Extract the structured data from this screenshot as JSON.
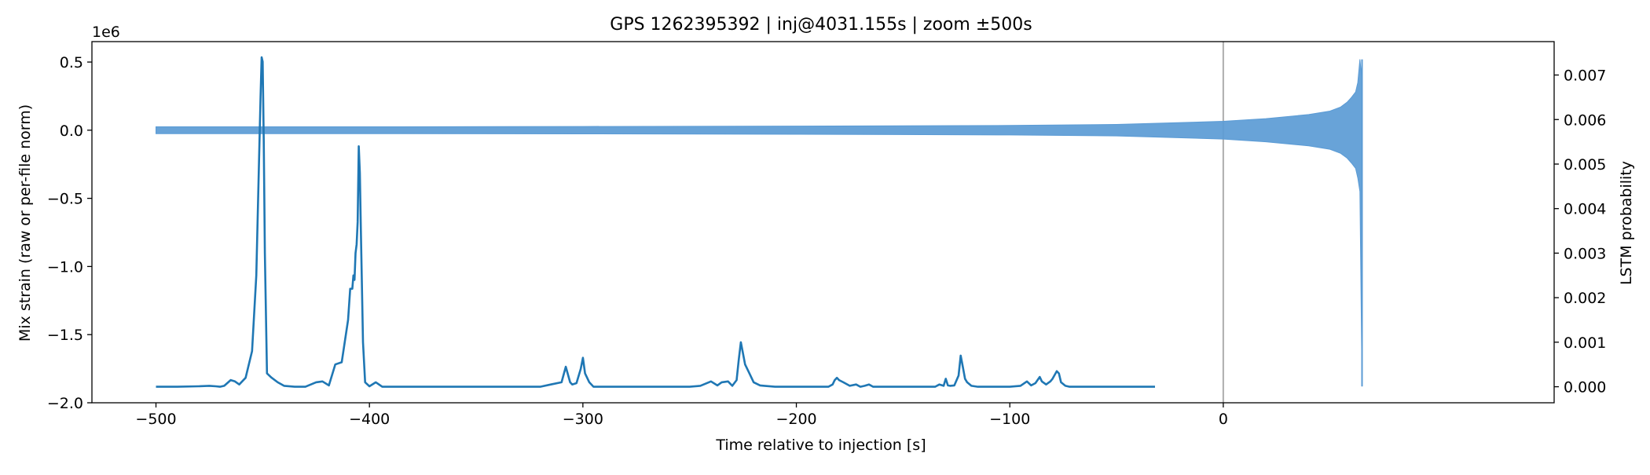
{
  "chart_data": {
    "type": "line",
    "title": "GPS 1262395392 | inj@4031.155s | zoom ±500s",
    "xlabel": "Time relative to injection [s]",
    "ylabel_left": "Mix strain (raw or per-file norm)",
    "ylabel_right": "LSTM probability",
    "offset_text_left": "1e6",
    "xlim": [
      -530,
      155
    ],
    "ylim_left": [
      -2000000,
      650000
    ],
    "ylim_right": [
      -0.00036,
      0.00775
    ],
    "xticks": [
      -500,
      -400,
      -300,
      -200,
      -100,
      0
    ],
    "xtick_labels": [
      "−500",
      "−400",
      "−300",
      "−200",
      "−100",
      "0"
    ],
    "yticks_left": [
      -2000000,
      -1500000,
      -1000000,
      -500000,
      0,
      500000
    ],
    "ytick_labels_left": [
      "−2.0",
      "−1.5",
      "−1.0",
      "−0.5",
      "0.0",
      "0.5"
    ],
    "yticks_right": [
      0,
      0.001,
      0.002,
      0.003,
      0.004,
      0.005,
      0.006,
      0.007
    ],
    "ytick_labels_right": [
      "0.000",
      "0.001",
      "0.002",
      "0.003",
      "0.004",
      "0.005",
      "0.006",
      "0.007"
    ],
    "grid": false,
    "legend": "none",
    "series": [
      {
        "axis": "left",
        "style": "band",
        "color": "#5b9bd5",
        "x": [
          -500,
          -400,
          -300,
          -200,
          -100,
          -50,
          0,
          20,
          40,
          50,
          55,
          58,
          60,
          62,
          63,
          64,
          65
        ],
        "upper": [
          25000,
          25000,
          27000,
          30000,
          35000,
          42000,
          65000,
          85000,
          115000,
          140000,
          170000,
          205000,
          240000,
          280000,
          350000,
          520000,
          360000
        ],
        "lower": [
          -25000,
          -25000,
          -27000,
          -30000,
          -35000,
          -42000,
          -65000,
          -85000,
          -115000,
          -140000,
          -170000,
          -205000,
          -240000,
          -280000,
          -350000,
          -450000,
          -1880000
        ]
      },
      {
        "axis": "right",
        "style": "line",
        "color": "#1f77b4",
        "x": [
          -500,
          -490,
          -480,
          -475,
          -472,
          -470,
          -468,
          -465,
          -463,
          -461,
          -458,
          -455,
          -453,
          -452,
          -451,
          -450.5,
          -450,
          -449.5,
          -449,
          -448,
          -446,
          -443,
          -440,
          -435,
          -430,
          -425,
          -422,
          -419,
          -416,
          -413,
          -410,
          -409,
          -408,
          -407.5,
          -407,
          -406.5,
          -406,
          -405.5,
          -405,
          -404.5,
          -404,
          -403,
          -402,
          -400,
          -397,
          -394,
          -390,
          -380,
          -370,
          -360,
          -350,
          -340,
          -330,
          -320,
          -315,
          -310,
          -308,
          -306,
          -305,
          -303,
          -301,
          -300,
          -299,
          -297,
          -295,
          -290,
          -285,
          -280,
          -270,
          -260,
          -250,
          -245,
          -240,
          -237,
          -235,
          -232,
          -230,
          -228,
          -227,
          -226,
          -225,
          -224,
          -222,
          -220,
          -217,
          -215,
          -210,
          -200,
          -190,
          -185,
          -183,
          -182,
          -181,
          -180,
          -178,
          -175,
          -172,
          -170,
          -168,
          -166,
          -164,
          -160,
          -150,
          -140,
          -135,
          -133,
          -131,
          -130,
          -129,
          -128,
          -126,
          -124,
          -123,
          -122,
          -121,
          -120,
          -118,
          -115,
          -110,
          -100,
          -95,
          -92,
          -90,
          -88,
          -86,
          -85,
          -83,
          -81,
          -80,
          -78,
          -77,
          -76,
          -74,
          -72,
          -70,
          -65,
          -60,
          -50,
          -40,
          -32
        ],
        "y": [
          0,
          0,
          1e-05,
          2e-05,
          1e-05,
          0,
          2e-05,
          0.00015,
          0.00012,
          5e-05,
          0.0002,
          0.0008,
          0.0025,
          0.0045,
          0.0065,
          0.0074,
          0.0073,
          0.0055,
          0.003,
          0.0003,
          0.00021,
          0.0001,
          2e-05,
          0,
          0,
          0.0001,
          0.00012,
          3e-05,
          0.0005,
          0.00055,
          0.0015,
          0.0022,
          0.0022,
          0.0025,
          0.0024,
          0.003,
          0.0032,
          0.0037,
          0.0054,
          0.0048,
          0.0035,
          0.001,
          0.0001,
          1e-05,
          0.0001,
          0,
          0,
          0,
          0,
          0,
          0,
          0,
          0,
          0,
          5e-05,
          0.0001,
          0.00045,
          0.0001,
          5e-05,
          8e-05,
          0.0004,
          0.00065,
          0.0003,
          0.0001,
          0,
          0,
          0,
          0,
          0,
          0,
          0,
          2e-05,
          0.00012,
          3e-05,
          0.0001,
          0.00012,
          2e-05,
          0.00015,
          0.0006,
          0.001,
          0.00075,
          0.0005,
          0.0003,
          0.0001,
          3e-05,
          2e-05,
          0,
          0,
          0,
          0,
          5e-05,
          0.00015,
          0.0002,
          0.00015,
          0.0001,
          2e-05,
          5e-05,
          0,
          2e-05,
          5e-05,
          0,
          0,
          0,
          0,
          0,
          5e-05,
          2e-05,
          0.00018,
          3e-05,
          2e-05,
          3e-05,
          0.00025,
          0.0007,
          0.00045,
          0.00018,
          0.0001,
          2e-05,
          0,
          0,
          0,
          2e-05,
          0.00012,
          3e-05,
          8e-05,
          0.00022,
          0.00012,
          5e-05,
          0.00012,
          0.00018,
          0.00035,
          0.0003,
          0.0001,
          2e-05,
          0,
          0,
          0,
          0,
          0,
          0,
          0
        ]
      }
    ],
    "annotations": [
      {
        "type": "vline",
        "x": 0,
        "color": "#b3b3b3"
      }
    ]
  }
}
